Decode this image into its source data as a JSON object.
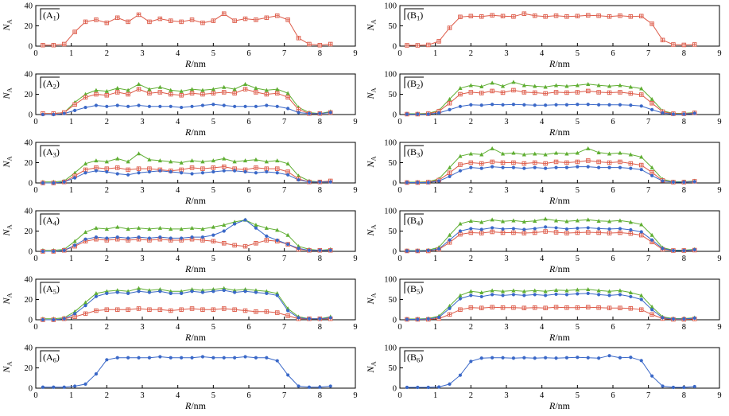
{
  "figure": {
    "rows": 6,
    "columns": 2
  },
  "styles": {
    "red": {
      "color": "#dd5a48",
      "marker": "square-plus"
    },
    "green": {
      "color": "#5fae32",
      "marker": "triangle"
    },
    "blue": {
      "color": "#3a68c8",
      "marker": "circle"
    }
  },
  "axes": {
    "x": [
      0.2,
      0.5,
      0.8,
      1.1,
      1.4,
      1.7,
      2.0,
      2.3,
      2.6,
      2.9,
      3.2,
      3.5,
      3.8,
      4.1,
      4.4,
      4.7,
      5.0,
      5.3,
      5.6,
      5.9,
      6.2,
      6.5,
      6.8,
      7.1,
      7.4,
      7.7,
      8.0,
      8.3
    ],
    "x_ticks": [
      0,
      1,
      2,
      3,
      4,
      5,
      6,
      7,
      8,
      9
    ],
    "x_max": 9,
    "x_label": {
      "var": "R",
      "unit": "/nm"
    },
    "y_label": {
      "var": "N",
      "sub": "A"
    }
  },
  "chart_data": [
    {
      "type": "line",
      "panel": "A",
      "sub": "1",
      "ylim": [
        0,
        40
      ],
      "yticks": [
        0,
        20,
        40
      ],
      "series": [
        {
          "name": "red",
          "values": [
            1,
            1,
            2,
            14,
            24,
            26,
            23,
            28,
            24,
            31,
            24,
            27,
            25,
            24,
            26,
            23,
            25,
            32,
            25,
            27,
            26,
            28,
            30,
            26,
            8,
            2,
            1,
            2
          ]
        }
      ]
    },
    {
      "type": "line",
      "panel": "B",
      "sub": "1",
      "ylim": [
        0,
        100
      ],
      "yticks": [
        0,
        50,
        100
      ],
      "series": [
        {
          "name": "red",
          "values": [
            2,
            2,
            3,
            12,
            45,
            72,
            74,
            73,
            76,
            74,
            73,
            80,
            75,
            73,
            75,
            73,
            74,
            76,
            75,
            73,
            75,
            73,
            74,
            55,
            15,
            4,
            3,
            4
          ]
        }
      ]
    },
    {
      "type": "line",
      "panel": "A",
      "sub": "2",
      "ylim": [
        0,
        40
      ],
      "yticks": [
        0,
        20,
        40
      ],
      "series": [
        {
          "name": "green",
          "values": [
            1,
            1,
            2,
            12,
            20,
            24,
            23,
            26,
            24,
            30,
            25,
            27,
            24,
            23,
            25,
            24,
            25,
            27,
            25,
            30,
            26,
            24,
            25,
            21,
            7,
            2,
            1,
            3
          ]
        },
        {
          "name": "red",
          "values": [
            1,
            1,
            2,
            10,
            17,
            20,
            19,
            22,
            20,
            25,
            21,
            22,
            20,
            19,
            21,
            20,
            21,
            22,
            21,
            25,
            22,
            20,
            21,
            17,
            5,
            1,
            1,
            2
          ]
        },
        {
          "name": "blue",
          "values": [
            0,
            0,
            1,
            4,
            7,
            9,
            8,
            9,
            8,
            9,
            8,
            8,
            8,
            7,
            8,
            9,
            10,
            9,
            8,
            8,
            8,
            9,
            8,
            6,
            2,
            1,
            1,
            2
          ]
        }
      ]
    },
    {
      "type": "line",
      "panel": "B",
      "sub": "2",
      "ylim": [
        0,
        100
      ],
      "yticks": [
        0,
        50,
        100
      ],
      "series": [
        {
          "name": "green",
          "values": [
            2,
            2,
            3,
            10,
            38,
            65,
            72,
            69,
            78,
            70,
            80,
            72,
            70,
            68,
            72,
            70,
            72,
            75,
            72,
            70,
            72,
            68,
            64,
            38,
            9,
            3,
            3,
            5
          ]
        },
        {
          "name": "red",
          "values": [
            1,
            1,
            2,
            8,
            28,
            50,
            55,
            53,
            58,
            54,
            60,
            55,
            54,
            52,
            55,
            54,
            55,
            58,
            55,
            54,
            55,
            52,
            49,
            28,
            7,
            2,
            2,
            4
          ]
        },
        {
          "name": "blue",
          "values": [
            1,
            1,
            1,
            4,
            12,
            20,
            24,
            23,
            25,
            24,
            25,
            24,
            23,
            23,
            24,
            24,
            25,
            25,
            24,
            24,
            24,
            23,
            21,
            12,
            4,
            1,
            1,
            3
          ]
        }
      ]
    },
    {
      "type": "line",
      "panel": "A",
      "sub": "3",
      "ylim": [
        0,
        40
      ],
      "yticks": [
        0,
        20,
        40
      ],
      "series": [
        {
          "name": "green",
          "values": [
            1,
            1,
            2,
            10,
            19,
            22,
            21,
            24,
            21,
            29,
            23,
            22,
            21,
            20,
            22,
            21,
            22,
            24,
            21,
            22,
            23,
            21,
            22,
            19,
            7,
            2,
            1,
            2
          ]
        },
        {
          "name": "red",
          "values": [
            0,
            0,
            1,
            7,
            13,
            15,
            14,
            15,
            13,
            14,
            14,
            13,
            12,
            13,
            15,
            14,
            15,
            16,
            14,
            13,
            15,
            14,
            14,
            11,
            4,
            1,
            1,
            2
          ]
        },
        {
          "name": "blue",
          "values": [
            0,
            0,
            1,
            5,
            10,
            12,
            11,
            9,
            8,
            10,
            11,
            12,
            11,
            10,
            9,
            10,
            11,
            12,
            12,
            11,
            10,
            11,
            10,
            8,
            3,
            1,
            1,
            1
          ]
        }
      ]
    },
    {
      "type": "line",
      "panel": "B",
      "sub": "3",
      "ylim": [
        0,
        100
      ],
      "yticks": [
        0,
        50,
        100
      ],
      "series": [
        {
          "name": "green",
          "values": [
            2,
            2,
            3,
            10,
            38,
            66,
            72,
            70,
            85,
            72,
            74,
            70,
            72,
            70,
            74,
            72,
            74,
            85,
            75,
            72,
            74,
            70,
            64,
            38,
            9,
            3,
            3,
            5
          ]
        },
        {
          "name": "red",
          "values": [
            1,
            1,
            2,
            7,
            25,
            45,
            50,
            48,
            52,
            50,
            50,
            48,
            50,
            48,
            52,
            50,
            52,
            55,
            52,
            50,
            52,
            48,
            44,
            26,
            6,
            2,
            2,
            4
          ]
        },
        {
          "name": "blue",
          "values": [
            1,
            1,
            1,
            5,
            16,
            30,
            38,
            36,
            40,
            38,
            38,
            36,
            38,
            36,
            38,
            38,
            40,
            40,
            38,
            38,
            38,
            36,
            33,
            18,
            5,
            2,
            2,
            3
          ]
        }
      ]
    },
    {
      "type": "line",
      "panel": "A",
      "sub": "4",
      "ylim": [
        0,
        40
      ],
      "yticks": [
        0,
        20,
        40
      ],
      "series": [
        {
          "name": "green",
          "values": [
            1,
            1,
            2,
            10,
            19,
            23,
            22,
            24,
            22,
            23,
            22,
            23,
            22,
            22,
            23,
            22,
            24,
            26,
            29,
            31,
            26,
            23,
            21,
            16,
            5,
            2,
            1,
            2
          ]
        },
        {
          "name": "red",
          "values": [
            0,
            0,
            1,
            5,
            10,
            12,
            11,
            12,
            11,
            12,
            11,
            12,
            11,
            11,
            12,
            11,
            10,
            8,
            6,
            5,
            8,
            11,
            10,
            7,
            2,
            1,
            1,
            1
          ]
        },
        {
          "name": "blue",
          "values": [
            0,
            0,
            1,
            6,
            12,
            14,
            13,
            14,
            13,
            14,
            13,
            14,
            13,
            13,
            14,
            14,
            16,
            20,
            27,
            31,
            23,
            15,
            11,
            7,
            3,
            1,
            1,
            1
          ]
        }
      ]
    },
    {
      "type": "line",
      "panel": "B",
      "sub": "4",
      "ylim": [
        0,
        100
      ],
      "yticks": [
        0,
        50,
        100
      ],
      "series": [
        {
          "name": "green",
          "values": [
            2,
            2,
            3,
            10,
            40,
            68,
            75,
            72,
            78,
            74,
            76,
            73,
            75,
            80,
            76,
            74,
            76,
            78,
            75,
            74,
            76,
            72,
            66,
            40,
            9,
            3,
            3,
            5
          ]
        },
        {
          "name": "red",
          "values": [
            1,
            1,
            1,
            5,
            22,
            42,
            46,
            45,
            48,
            46,
            46,
            45,
            46,
            49,
            47,
            45,
            46,
            47,
            46,
            45,
            46,
            44,
            40,
            23,
            5,
            2,
            2,
            3
          ]
        },
        {
          "name": "blue",
          "values": [
            1,
            1,
            2,
            6,
            28,
            50,
            56,
            54,
            58,
            55,
            56,
            54,
            56,
            60,
            58,
            55,
            57,
            58,
            56,
            55,
            56,
            53,
            48,
            28,
            7,
            2,
            2,
            4
          ]
        }
      ]
    },
    {
      "type": "line",
      "panel": "A",
      "sub": "5",
      "ylim": [
        0,
        40
      ],
      "yticks": [
        0,
        20,
        40
      ],
      "series": [
        {
          "name": "green",
          "values": [
            1,
            1,
            2,
            8,
            17,
            26,
            28,
            29,
            28,
            31,
            29,
            30,
            28,
            28,
            30,
            29,
            30,
            31,
            29,
            30,
            29,
            28,
            26,
            11,
            3,
            1,
            1,
            3
          ]
        },
        {
          "name": "red",
          "values": [
            0,
            0,
            1,
            3,
            6,
            9,
            10,
            10,
            10,
            11,
            10,
            10,
            9,
            10,
            11,
            10,
            10,
            11,
            10,
            9,
            8,
            8,
            7,
            4,
            1,
            1,
            1,
            1
          ]
        },
        {
          "name": "blue",
          "values": [
            0,
            0,
            1,
            6,
            14,
            23,
            26,
            27,
            26,
            28,
            27,
            28,
            26,
            26,
            28,
            27,
            28,
            29,
            27,
            28,
            27,
            26,
            24,
            9,
            2,
            1,
            1,
            2
          ]
        }
      ]
    },
    {
      "type": "line",
      "panel": "B",
      "sub": "5",
      "ylim": [
        0,
        100
      ],
      "yticks": [
        0,
        50,
        100
      ],
      "series": [
        {
          "name": "green",
          "values": [
            2,
            2,
            3,
            9,
            34,
            60,
            70,
            67,
            72,
            70,
            72,
            70,
            72,
            70,
            73,
            72,
            74,
            75,
            72,
            70,
            72,
            67,
            60,
            32,
            7,
            3,
            3,
            5
          ]
        },
        {
          "name": "red",
          "values": [
            1,
            1,
            1,
            3,
            13,
            25,
            30,
            29,
            31,
            30,
            30,
            29,
            30,
            29,
            31,
            30,
            30,
            31,
            30,
            29,
            29,
            28,
            25,
            13,
            3,
            1,
            1,
            2
          ]
        },
        {
          "name": "blue",
          "values": [
            1,
            1,
            2,
            6,
            28,
            52,
            60,
            57,
            62,
            60,
            62,
            60,
            62,
            60,
            63,
            62,
            64,
            65,
            62,
            60,
            62,
            57,
            50,
            25,
            5,
            2,
            2,
            4
          ]
        }
      ]
    },
    {
      "type": "line",
      "panel": "A",
      "sub": "6",
      "ylim": [
        0,
        40
      ],
      "yticks": [
        0,
        20,
        40
      ],
      "series": [
        {
          "name": "blue",
          "values": [
            1,
            1,
            1,
            2,
            4,
            14,
            28,
            30,
            30,
            30,
            30,
            31,
            30,
            30,
            30,
            31,
            30,
            30,
            30,
            31,
            30,
            30,
            27,
            13,
            2,
            1,
            1,
            2
          ]
        }
      ]
    },
    {
      "type": "line",
      "panel": "B",
      "sub": "6",
      "ylim": [
        0,
        100
      ],
      "yticks": [
        0,
        50,
        100
      ],
      "series": [
        {
          "name": "blue",
          "values": [
            2,
            2,
            2,
            3,
            10,
            32,
            66,
            74,
            75,
            75,
            74,
            75,
            74,
            75,
            74,
            75,
            76,
            75,
            74,
            80,
            75,
            76,
            68,
            30,
            5,
            2,
            2,
            4
          ]
        }
      ]
    }
  ]
}
